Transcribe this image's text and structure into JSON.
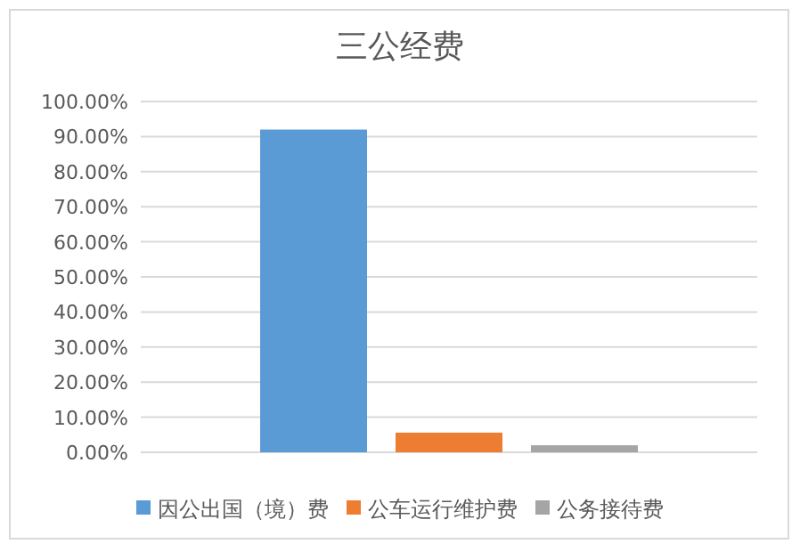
{
  "chart_data": {
    "type": "bar",
    "title": "三公经费",
    "categories": [
      null
    ],
    "series": [
      {
        "name": "因公出国（境）费",
        "color": "#5b9bd5",
        "values": [
          92.0
        ]
      },
      {
        "name": "公车运行维护费",
        "color": "#ed7d31",
        "values": [
          5.6
        ]
      },
      {
        "name": "公务接待费",
        "color": "#a5a5a5",
        "values": [
          2.0
        ]
      }
    ],
    "ylim": [
      0,
      100
    ],
    "yticks": [
      {
        "value": 0,
        "label": "0.00%"
      },
      {
        "value": 10,
        "label": "10.00%"
      },
      {
        "value": 20,
        "label": "20.00%"
      },
      {
        "value": 30,
        "label": "30.00%"
      },
      {
        "value": 40,
        "label": "40.00%"
      },
      {
        "value": 50,
        "label": "50.00%"
      },
      {
        "value": 60,
        "label": "60.00%"
      },
      {
        "value": 70,
        "label": "70.00%"
      },
      {
        "value": 80,
        "label": "80.00%"
      },
      {
        "value": 90,
        "label": "90.00%"
      },
      {
        "value": 100,
        "label": "100.00%"
      }
    ],
    "grid": "y",
    "legend": "bottom"
  }
}
